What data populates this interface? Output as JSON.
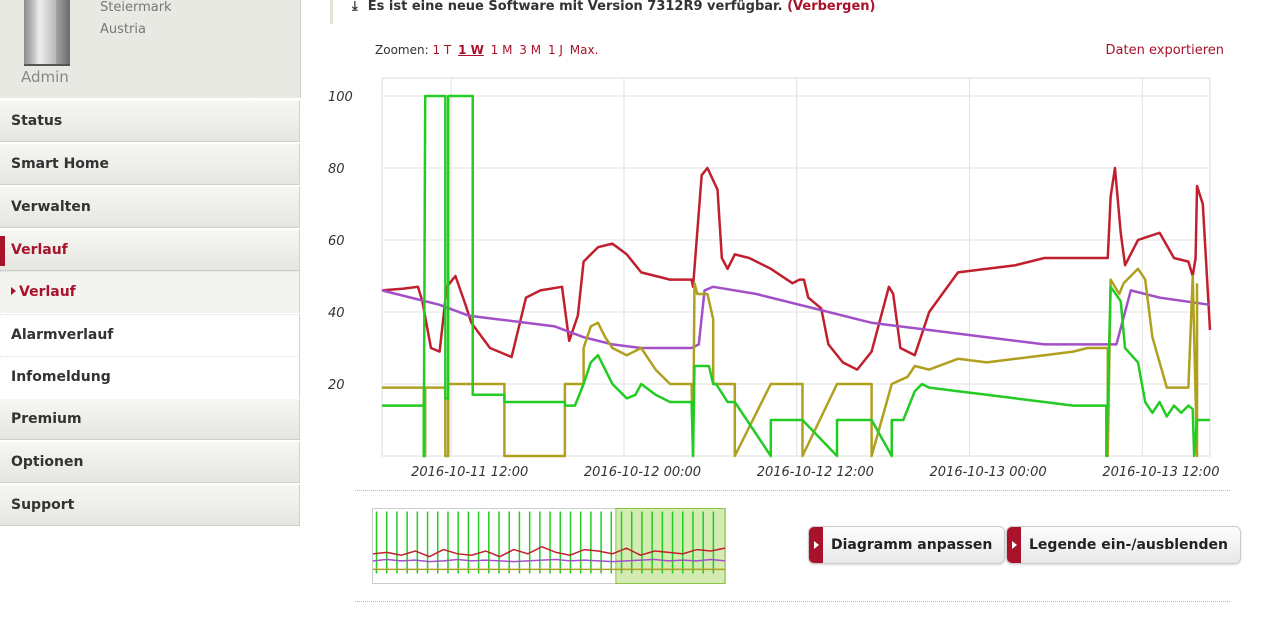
{
  "user": {
    "region_line1": "Steiermark",
    "region_line2": "Austria",
    "name": "Admin"
  },
  "sidebar": {
    "items": [
      {
        "label": "Status"
      },
      {
        "label": "Smart Home"
      },
      {
        "label": "Verwalten"
      },
      {
        "label": "Verlauf"
      },
      {
        "label": "Verlauf"
      },
      {
        "label": "Alarmverlauf"
      },
      {
        "label": "Infomeldung"
      },
      {
        "label": "Premium"
      },
      {
        "label": "Optionen"
      },
      {
        "label": "Support"
      }
    ]
  },
  "notice": {
    "text": "Es ist eine neue Software mit Version 7312R9 verfügbar.",
    "hide_label": "(Verbergen)"
  },
  "zoom": {
    "label": "Zoomen:",
    "options": [
      "1 T",
      "1 W",
      "1 M",
      "3 M",
      "1 J",
      "Max."
    ],
    "selected": "1 W"
  },
  "export_label": "Daten exportieren",
  "buttons": {
    "customize": "Diagramm anpassen",
    "legend": "Legende ein-/ausblenden"
  },
  "colors": {
    "accent": "#a8122b",
    "red": "#c0202e",
    "purple": "#a24fc8",
    "olive": "#b0a020",
    "green": "#22cc22"
  },
  "chart_data": {
    "type": "line",
    "ylim": [
      0,
      105
    ],
    "yticks": [
      20,
      40,
      60,
      80,
      100
    ],
    "xticks": [
      "2016-10-11 12:00",
      "2016-10-12 00:00",
      "2016-10-12 12:00",
      "2016-10-13 00:00",
      "2016-10-13 12:00"
    ],
    "x_unit": "hours since 2016-10-11 00:00",
    "series": [
      {
        "color": "#c0202e",
        "x": [
          0,
          1.5,
          2.5,
          2.8,
          3.4,
          4,
          4.5,
          5.1,
          5.8,
          6.2,
          7.5,
          9,
          10,
          11,
          12.5,
          13,
          13.6,
          14,
          15,
          16,
          17,
          18,
          20,
          21.5,
          21.6,
          22.2,
          22.6,
          23.3,
          23.6,
          24,
          24.5,
          25.5,
          27,
          28.5,
          29,
          29.3,
          29.6,
          30.5,
          31,
          32,
          33,
          34,
          35.2,
          35.5,
          36,
          37,
          38,
          40,
          44,
          46,
          50.4,
          50.6,
          50.9,
          51.3,
          51.6,
          52.5,
          54,
          55,
          56,
          56.3,
          56.5,
          56.6,
          57,
          57.5
        ],
        "y": [
          46,
          46.5,
          47,
          43,
          30,
          29,
          47,
          50,
          42,
          37,
          30,
          27.5,
          44,
          46,
          47,
          32,
          39,
          54,
          58,
          59,
          56,
          51,
          49,
          49,
          47,
          78,
          80,
          74,
          55,
          52,
          56,
          55,
          52,
          48,
          49,
          49,
          44,
          41,
          31,
          26,
          24,
          29,
          47,
          45,
          30,
          28,
          40,
          51,
          53,
          55,
          55,
          72,
          80,
          62,
          53,
          60,
          62,
          55,
          54,
          50,
          55,
          75,
          70,
          35
        ]
      },
      {
        "color": "#a24fc8",
        "x": [
          0,
          2,
          4,
          6,
          8,
          10,
          12,
          14,
          16,
          18,
          20,
          21.5,
          22,
          22.4,
          23,
          26,
          30,
          34,
          38,
          42,
          46,
          50,
          51,
          52,
          54,
          57.5
        ],
        "y": [
          46,
          44,
          42,
          39,
          38,
          37,
          36,
          33,
          31,
          30,
          30,
          30,
          31,
          46,
          47,
          45,
          41,
          37,
          35,
          33,
          31,
          31,
          31,
          46,
          44,
          42
        ]
      },
      {
        "color": "#b0a020",
        "x": [
          0,
          2.9,
          2.9,
          3.0,
          3.0,
          4.4,
          4.4,
          4.6,
          4.6,
          8.5,
          8.5,
          12.7,
          12.7,
          14.0,
          14.0,
          14.5,
          15,
          15.5,
          16,
          17,
          18,
          19,
          20,
          21.5,
          21.6,
          21.7,
          21.9,
          22.6,
          23,
          23,
          24,
          24.5,
          24.5,
          27,
          27,
          29.2,
          29.2,
          31.6,
          31.6,
          34,
          34,
          35.4,
          35.4,
          36.5,
          37,
          38,
          40,
          42,
          44,
          46,
          48,
          49,
          50.4,
          50.4,
          50.6,
          51.2,
          51.5,
          52.5,
          53,
          53.5,
          54.5,
          56,
          56.3,
          56.6,
          56.6
        ],
        "y": [
          19,
          19,
          0,
          0,
          19,
          19,
          0,
          0,
          20,
          20,
          0,
          0,
          20,
          20,
          30,
          36,
          37,
          33,
          30,
          28,
          30,
          24,
          20,
          20,
          0,
          48,
          45,
          45,
          38,
          20,
          20,
          20,
          0,
          20,
          20,
          20,
          0,
          20,
          20,
          20,
          0,
          20,
          20,
          22,
          25,
          24,
          27,
          26,
          27,
          28,
          29,
          30,
          30,
          0,
          49,
          45,
          48,
          52,
          49,
          33,
          19,
          19,
          50,
          0,
          48
        ]
      },
      {
        "color": "#22cc22",
        "x": [
          0,
          2.9,
          2.9,
          3.0,
          3.0,
          4.4,
          4.4,
          4.6,
          4.6,
          6.3,
          6.3,
          8.5,
          8.5,
          12.7,
          12.7,
          13.4,
          14,
          14.5,
          15,
          15.5,
          16,
          17,
          17.6,
          18,
          19,
          20,
          21.5,
          21.6,
          21.7,
          22,
          22.7,
          23,
          23.2,
          24,
          24.5,
          24.5,
          27,
          27,
          29.2,
          29.2,
          31.6,
          31.6,
          34,
          34,
          35.4,
          35.4,
          36.2,
          36.6,
          37,
          37.5,
          38,
          40,
          42,
          44,
          46,
          48,
          50,
          50.3,
          50.3,
          50.6,
          51.3,
          51.6,
          52.5,
          53,
          53.5,
          54,
          54.5,
          55,
          55.5,
          56,
          56.3,
          56.4,
          56.6,
          57.5
        ],
        "y": [
          14,
          14,
          0,
          100,
          100,
          100,
          16,
          16,
          100,
          100,
          17,
          17,
          15,
          15,
          14,
          14,
          20,
          26,
          28,
          24,
          20,
          16,
          17,
          20,
          17,
          15,
          15,
          0,
          25,
          25,
          25,
          20,
          20,
          15,
          15,
          15,
          0,
          10,
          10,
          10,
          0,
          10,
          10,
          10,
          0,
          10,
          10,
          14,
          18,
          20,
          19,
          18,
          17,
          16,
          15,
          14,
          14,
          14,
          0,
          47,
          43,
          30,
          26,
          15,
          12,
          15,
          11,
          14,
          12,
          14,
          13,
          0,
          10,
          10
        ]
      }
    ]
  },
  "navigator_data": {
    "x": [
      0,
      4,
      8,
      12,
      16,
      20,
      24,
      28,
      32,
      36,
      40,
      44,
      48,
      52,
      56,
      60,
      64,
      68,
      72,
      76,
      80,
      84,
      88,
      92,
      96,
      100
    ],
    "red": [
      40,
      42,
      38,
      44,
      36,
      46,
      40,
      38,
      44,
      36,
      46,
      40,
      50,
      42,
      38,
      46,
      44,
      40,
      48,
      38,
      44,
      42,
      40,
      46,
      44,
      48
    ],
    "purple": [
      30,
      32,
      30,
      31,
      29,
      30,
      32,
      30,
      31,
      30,
      29,
      30,
      31,
      32,
      30,
      31,
      30,
      29,
      30,
      31,
      32,
      30,
      31,
      30,
      32,
      30
    ]
  }
}
